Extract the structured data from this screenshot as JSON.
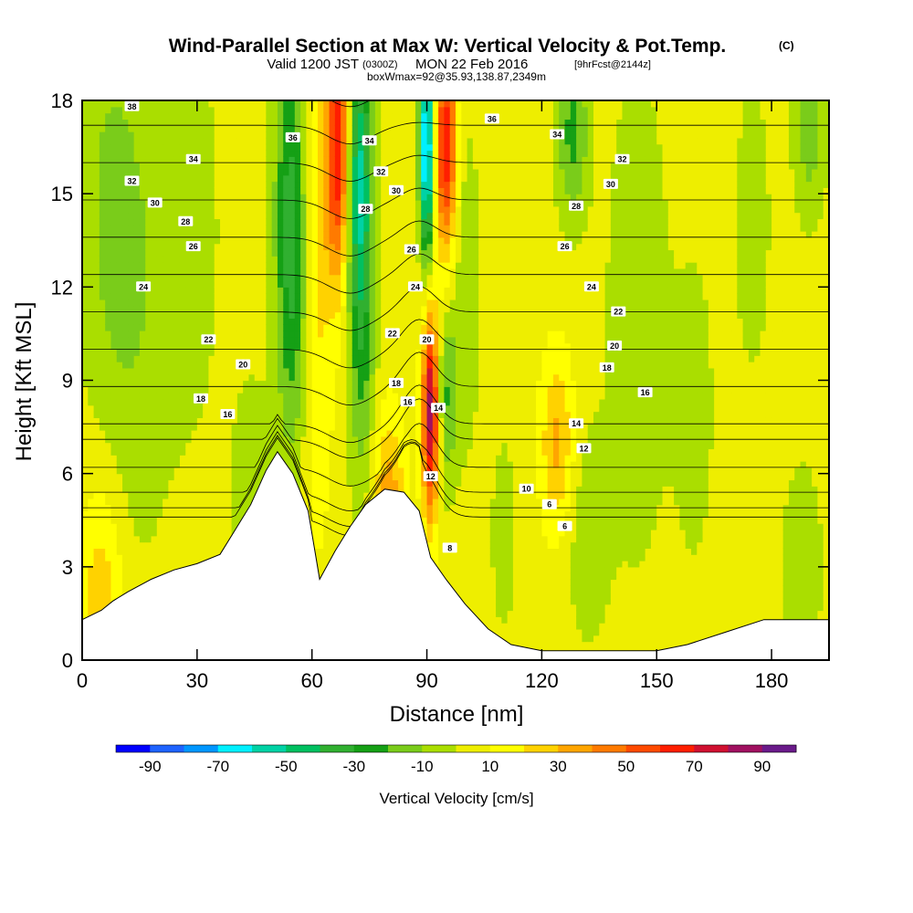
{
  "title": {
    "main": "Wind-Parallel Section at Max W: Vertical Velocity & Pot.Temp.",
    "copyright": "(C)",
    "valid_prefix": "Valid 1200 JST",
    "valid_utc": "(0300Z)",
    "valid_date": "MON 22 Feb 2016",
    "forecast": "[9hrFcst@2144z]",
    "boxinfo": "boxWmax=92@35.93,138.87,2349m"
  },
  "chart_data": {
    "type": "heatmap",
    "xlabel": "Distance [nm]",
    "ylabel": "Height [Kft MSL]",
    "xlim": [
      0,
      195
    ],
    "ylim": [
      0,
      18
    ],
    "x_ticks": [
      0,
      30,
      60,
      90,
      120,
      150,
      180
    ],
    "y_ticks": [
      0,
      3,
      6,
      9,
      12,
      15,
      18
    ],
    "colorbar": {
      "label": "Vertical Velocity [cm/s]",
      "ticks": [
        -90,
        -70,
        -50,
        -30,
        -10,
        10,
        30,
        50,
        70,
        90
      ],
      "bins": [
        -100,
        -90,
        -80,
        -70,
        -60,
        -50,
        -40,
        -30,
        -20,
        -10,
        0,
        10,
        20,
        30,
        40,
        50,
        60,
        70,
        80,
        90,
        100
      ],
      "colors": [
        "#0000ff",
        "#1e63ff",
        "#0096ff",
        "#00f0ff",
        "#00d2a5",
        "#00c060",
        "#30b030",
        "#15a015",
        "#7acc1a",
        "#aade00",
        "#eeee00",
        "#ffff00",
        "#ffd200",
        "#ffa500",
        "#ff7a00",
        "#ff4a00",
        "#ff1e00",
        "#d01030",
        "#a01060",
        "#6a1a8a"
      ]
    },
    "background_value": 5,
    "w_features": [
      {
        "x": 5,
        "y": 1.5,
        "sx": 4,
        "sy": 3,
        "value": 24
      },
      {
        "x": 14,
        "y": 12,
        "sx": 8,
        "sy": 6,
        "value": -14
      },
      {
        "x": 6,
        "y": 15.5,
        "sx": 6,
        "sy": 5,
        "value": -10
      },
      {
        "x": 30,
        "y": 14,
        "sx": 5,
        "sy": 5,
        "value": -8
      },
      {
        "x": 44,
        "y": 5.5,
        "sx": 4,
        "sy": 3,
        "value": -10
      },
      {
        "x": 54,
        "y": 15,
        "sx": 3,
        "sy": 5,
        "value": -28
      },
      {
        "x": 56,
        "y": 12,
        "sx": 3,
        "sy": 4,
        "value": -20
      },
      {
        "x": 61,
        "y": 13,
        "sx": 3,
        "sy": 6,
        "value": 20
      },
      {
        "x": 67,
        "y": 16.5,
        "sx": 2.2,
        "sy": 3,
        "value": 68
      },
      {
        "x": 72,
        "y": 16,
        "sx": 2.5,
        "sy": 3,
        "value": -48
      },
      {
        "x": 73,
        "y": 11,
        "sx": 2.5,
        "sy": 4,
        "value": -30
      },
      {
        "x": 80,
        "y": 5,
        "sx": 3,
        "sy": 2,
        "value": 32
      },
      {
        "x": 90,
        "y": 16.5,
        "sx": 1.3,
        "sy": 2.5,
        "value": -85
      },
      {
        "x": 95,
        "y": 16.5,
        "sx": 2,
        "sy": 2.5,
        "value": 65
      },
      {
        "x": 91,
        "y": 8,
        "sx": 1.5,
        "sy": 2.3,
        "value": 82
      },
      {
        "x": 95,
        "y": 8.5,
        "sx": 2,
        "sy": 2,
        "value": -25
      },
      {
        "x": 100,
        "y": 12,
        "sx": 3,
        "sy": 4,
        "value": -12
      },
      {
        "x": 110,
        "y": 4,
        "sx": 3,
        "sy": 3,
        "value": -8
      },
      {
        "x": 124,
        "y": 7,
        "sx": 3,
        "sy": 2,
        "value": 28
      },
      {
        "x": 128,
        "y": 17,
        "sx": 3,
        "sy": 2,
        "value": -28
      },
      {
        "x": 132,
        "y": 4,
        "sx": 4,
        "sy": 2.5,
        "value": -12
      },
      {
        "x": 145,
        "y": 11,
        "sx": 6,
        "sy": 6,
        "value": -12
      },
      {
        "x": 160,
        "y": 8,
        "sx": 4,
        "sy": 4,
        "value": -9
      },
      {
        "x": 175,
        "y": 14,
        "sx": 4,
        "sy": 4,
        "value": -9
      },
      {
        "x": 188,
        "y": 3,
        "sx": 4,
        "sy": 2.5,
        "value": -12
      },
      {
        "x": 190,
        "y": 17,
        "sx": 3,
        "sy": 2,
        "value": -20
      }
    ],
    "terrain": [
      {
        "x": 0,
        "h": 1.3
      },
      {
        "x": 5,
        "h": 1.6
      },
      {
        "x": 8,
        "h": 1.9
      },
      {
        "x": 12,
        "h": 2.2
      },
      {
        "x": 18,
        "h": 2.6
      },
      {
        "x": 24,
        "h": 2.9
      },
      {
        "x": 30,
        "h": 3.1
      },
      {
        "x": 36,
        "h": 3.4
      },
      {
        "x": 40,
        "h": 4.2
      },
      {
        "x": 44,
        "h": 5.0
      },
      {
        "x": 48,
        "h": 6.1
      },
      {
        "x": 51,
        "h": 6.7
      },
      {
        "x": 55,
        "h": 6.0
      },
      {
        "x": 59,
        "h": 4.8
      },
      {
        "x": 62,
        "h": 2.6
      },
      {
        "x": 66,
        "h": 3.5
      },
      {
        "x": 70,
        "h": 4.3
      },
      {
        "x": 74,
        "h": 5.0
      },
      {
        "x": 79,
        "h": 5.5
      },
      {
        "x": 84,
        "h": 5.4
      },
      {
        "x": 88,
        "h": 4.8
      },
      {
        "x": 91,
        "h": 3.3
      },
      {
        "x": 95,
        "h": 2.6
      },
      {
        "x": 100,
        "h": 1.8
      },
      {
        "x": 106,
        "h": 1.0
      },
      {
        "x": 112,
        "h": 0.5
      },
      {
        "x": 120,
        "h": 0.3
      },
      {
        "x": 150,
        "h": 0.3
      },
      {
        "x": 158,
        "h": 0.5
      },
      {
        "x": 168,
        "h": 0.9
      },
      {
        "x": 178,
        "h": 1.3
      },
      {
        "x": 195,
        "h": 1.3
      }
    ],
    "theta_contours": [
      {
        "value": 6,
        "labels": [
          {
            "x": 122,
            "y": 5.0
          },
          {
            "x": 126,
            "y": 4.3
          }
        ]
      },
      {
        "value": 8,
        "labels": [
          {
            "x": 96,
            "y": 3.6
          }
        ]
      },
      {
        "value": 10,
        "labels": [
          {
            "x": 116,
            "y": 5.5
          }
        ]
      },
      {
        "value": 12,
        "labels": [
          {
            "x": 91,
            "y": 5.9
          },
          {
            "x": 131,
            "y": 6.8
          }
        ]
      },
      {
        "value": 14,
        "labels": [
          {
            "x": 93,
            "y": 8.1
          },
          {
            "x": 129,
            "y": 7.6
          }
        ]
      },
      {
        "value": 16,
        "labels": [
          {
            "x": 38,
            "y": 7.9
          },
          {
            "x": 85,
            "y": 8.3
          },
          {
            "x": 147,
            "y": 8.6
          }
        ]
      },
      {
        "value": 18,
        "labels": [
          {
            "x": 31,
            "y": 8.4
          },
          {
            "x": 82,
            "y": 8.9
          },
          {
            "x": 137,
            "y": 9.4
          }
        ]
      },
      {
        "value": 20,
        "labels": [
          {
            "x": 42,
            "y": 9.5
          },
          {
            "x": 90,
            "y": 10.3
          },
          {
            "x": 139,
            "y": 10.1
          }
        ]
      },
      {
        "value": 22,
        "labels": [
          {
            "x": 33,
            "y": 10.3
          },
          {
            "x": 81,
            "y": 10.5
          },
          {
            "x": 140,
            "y": 11.2
          }
        ]
      },
      {
        "value": 24,
        "labels": [
          {
            "x": 16,
            "y": 12.0
          },
          {
            "x": 87,
            "y": 12.0
          },
          {
            "x": 133,
            "y": 12.0
          }
        ]
      },
      {
        "value": 26,
        "labels": [
          {
            "x": 29,
            "y": 13.3
          },
          {
            "x": 86,
            "y": 13.2
          },
          {
            "x": 126,
            "y": 13.3
          }
        ]
      },
      {
        "value": 28,
        "labels": [
          {
            "x": 27,
            "y": 14.1
          },
          {
            "x": 74,
            "y": 14.5
          },
          {
            "x": 129,
            "y": 14.6
          }
        ]
      },
      {
        "value": 30,
        "labels": [
          {
            "x": 19,
            "y": 14.7
          },
          {
            "x": 82,
            "y": 15.1
          },
          {
            "x": 138,
            "y": 15.3
          }
        ]
      },
      {
        "value": 32,
        "labels": [
          {
            "x": 13,
            "y": 15.4
          },
          {
            "x": 78,
            "y": 15.7
          },
          {
            "x": 141,
            "y": 16.1
          }
        ]
      },
      {
        "value": 34,
        "labels": [
          {
            "x": 29,
            "y": 16.1
          },
          {
            "x": 75,
            "y": 16.7
          },
          {
            "x": 124,
            "y": 16.9
          }
        ]
      },
      {
        "value": 36,
        "labels": [
          {
            "x": 55,
            "y": 16.8
          },
          {
            "x": 107,
            "y": 17.4
          }
        ]
      },
      {
        "value": 38,
        "labels": [
          {
            "x": 13,
            "y": 17.8
          }
        ]
      }
    ]
  }
}
